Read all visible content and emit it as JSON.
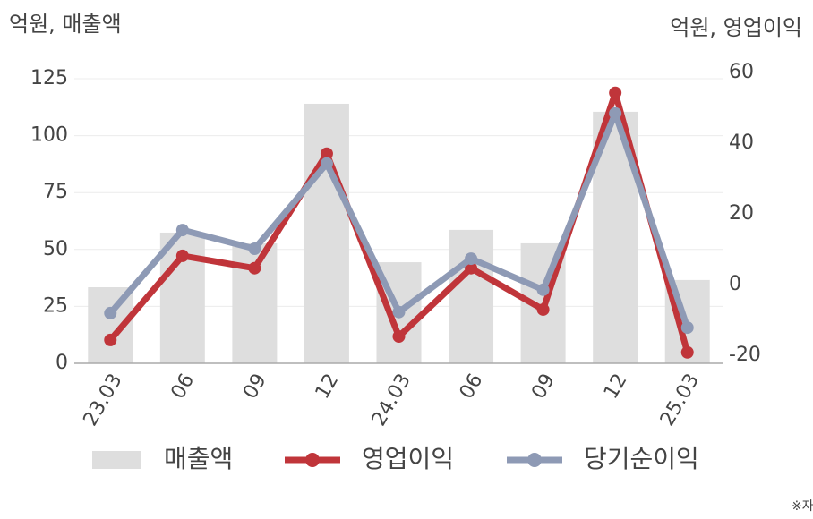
{
  "chart_data": {
    "type": "bar-line",
    "left_unit": "억원, 매출액",
    "right_unit": "억원, 영업이익",
    "footnote": "※자",
    "categories": [
      "23.03",
      "06",
      "09",
      "12",
      "24.03",
      "06",
      "09",
      "12",
      "25.03"
    ],
    "series": [
      {
        "name": "매출액",
        "type": "bar",
        "color": "#dedede",
        "values": [
          33.4,
          57.4,
          52.7,
          114,
          44.4,
          58.6,
          52.7,
          110.5,
          36.6
        ]
      },
      {
        "name": "영업이익",
        "type": "line",
        "axis": "y2",
        "color": "#c0353a",
        "values": [
          -15.7,
          8.1,
          4.6,
          37.0,
          -14.7,
          4.6,
          -7.1,
          54.2,
          -19.2
        ]
      },
      {
        "name": "당기순이익",
        "type": "line",
        "axis": "y2",
        "color": "#8e9ab5",
        "values": [
          -8.1,
          15.4,
          10.1,
          34.2,
          -7.8,
          7.3,
          -1.5,
          48.4,
          -12.2
        ]
      }
    ],
    "ylim": [
      0,
      125
    ],
    "yticks": [
      0,
      25,
      50,
      75,
      100,
      125
    ],
    "y2lim": [
      -22.3,
      58.2
    ],
    "y2ticks": [
      -20,
      0,
      20,
      40,
      60
    ],
    "grid": true
  }
}
